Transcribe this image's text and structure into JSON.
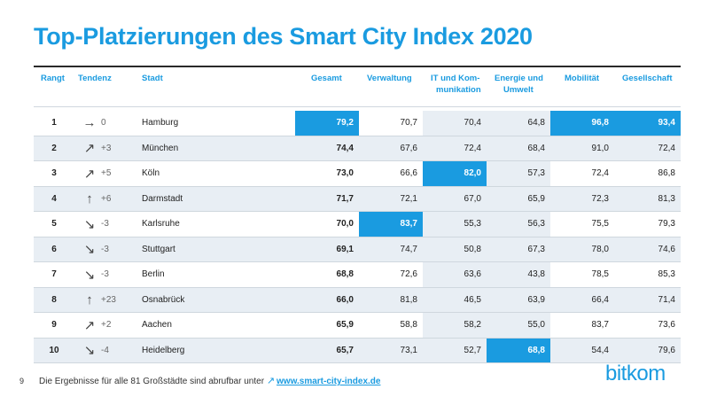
{
  "title": "Top-Platzierungen des Smart City Index 2020",
  "headers": {
    "rank": "Rangt",
    "trend": "Tendenz",
    "city": "Stadt",
    "gesamt": "Gesamt",
    "verwaltung": "Verwaltung",
    "it_line1": "IT und Kom-",
    "it_line2": "munikation",
    "energie_line1": "Energie und",
    "energie_line2": "Umwelt",
    "mobilitaet": "Mobilität",
    "gesellschaft": "Gesellschaft"
  },
  "rows": [
    {
      "rank": "1",
      "arrow": "→",
      "delta": "0",
      "city": "Hamburg",
      "gesamt": "79,2",
      "verwaltung": "70,7",
      "it": "70,4",
      "energie": "64,8",
      "mobilitaet": "96,8",
      "gesellschaft": "93,4"
    },
    {
      "rank": "2",
      "arrow": "↗",
      "delta": "+3",
      "city": "München",
      "gesamt": "74,4",
      "verwaltung": "67,6",
      "it": "72,4",
      "energie": "68,4",
      "mobilitaet": "91,0",
      "gesellschaft": "72,4"
    },
    {
      "rank": "3",
      "arrow": "↗",
      "delta": "+5",
      "city": "Köln",
      "gesamt": "73,0",
      "verwaltung": "66,6",
      "it": "82,0",
      "energie": "57,3",
      "mobilitaet": "72,4",
      "gesellschaft": "86,8"
    },
    {
      "rank": "4",
      "arrow": "↑",
      "delta": "+6",
      "city": "Darmstadt",
      "gesamt": "71,7",
      "verwaltung": "72,1",
      "it": "67,0",
      "energie": "65,9",
      "mobilitaet": "72,3",
      "gesellschaft": "81,3"
    },
    {
      "rank": "5",
      "arrow": "↘",
      "delta": "-3",
      "city": "Karlsruhe",
      "gesamt": "70,0",
      "verwaltung": "83,7",
      "it": "55,3",
      "energie": "56,3",
      "mobilitaet": "75,5",
      "gesellschaft": "79,3"
    },
    {
      "rank": "6",
      "arrow": "↘",
      "delta": "-3",
      "city": "Stuttgart",
      "gesamt": "69,1",
      "verwaltung": "74,7",
      "it": "50,8",
      "energie": "67,3",
      "mobilitaet": "78,0",
      "gesellschaft": "74,6"
    },
    {
      "rank": "7",
      "arrow": "↘",
      "delta": "-3",
      "city": "Berlin",
      "gesamt": "68,8",
      "verwaltung": "72,6",
      "it": "63,6",
      "energie": "43,8",
      "mobilitaet": "78,5",
      "gesellschaft": "85,3"
    },
    {
      "rank": "8",
      "arrow": "↑",
      "delta": "+23",
      "city": "Osnabrück",
      "gesamt": "66,0",
      "verwaltung": "81,8",
      "it": "46,5",
      "energie": "63,9",
      "mobilitaet": "66,4",
      "gesellschaft": "71,4"
    },
    {
      "rank": "9",
      "arrow": "↗",
      "delta": "+2",
      "city": "Aachen",
      "gesamt": "65,9",
      "verwaltung": "58,8",
      "it": "58,2",
      "energie": "55,0",
      "mobilitaet": "83,7",
      "gesellschaft": "73,6"
    },
    {
      "rank": "10",
      "arrow": "↘",
      "delta": "-4",
      "city": "Heidelberg",
      "gesamt": "65,7",
      "verwaltung": "73,1",
      "it": "52,7",
      "energie": "68,8",
      "mobilitaet": "54,4",
      "gesellschaft": "79,6"
    }
  ],
  "highlights": [
    {
      "row": 0,
      "col": "gesamt"
    },
    {
      "row": 0,
      "col": "mobilitaet"
    },
    {
      "row": 0,
      "col": "gesellschaft"
    },
    {
      "row": 2,
      "col": "it"
    },
    {
      "row": 4,
      "col": "verwaltung"
    },
    {
      "row": 9,
      "col": "energie"
    }
  ],
  "footer": {
    "page_number": "9",
    "text": "Die Ergebnisse für alle 81 Großstädte sind abrufbar unter",
    "link_icon": "↗",
    "link": "www.smart-city-index.de"
  },
  "logo": "bitkom",
  "colors": {
    "accent": "#1a9be0",
    "shade": "#e8eef4",
    "rule": "#2a2a2a"
  }
}
